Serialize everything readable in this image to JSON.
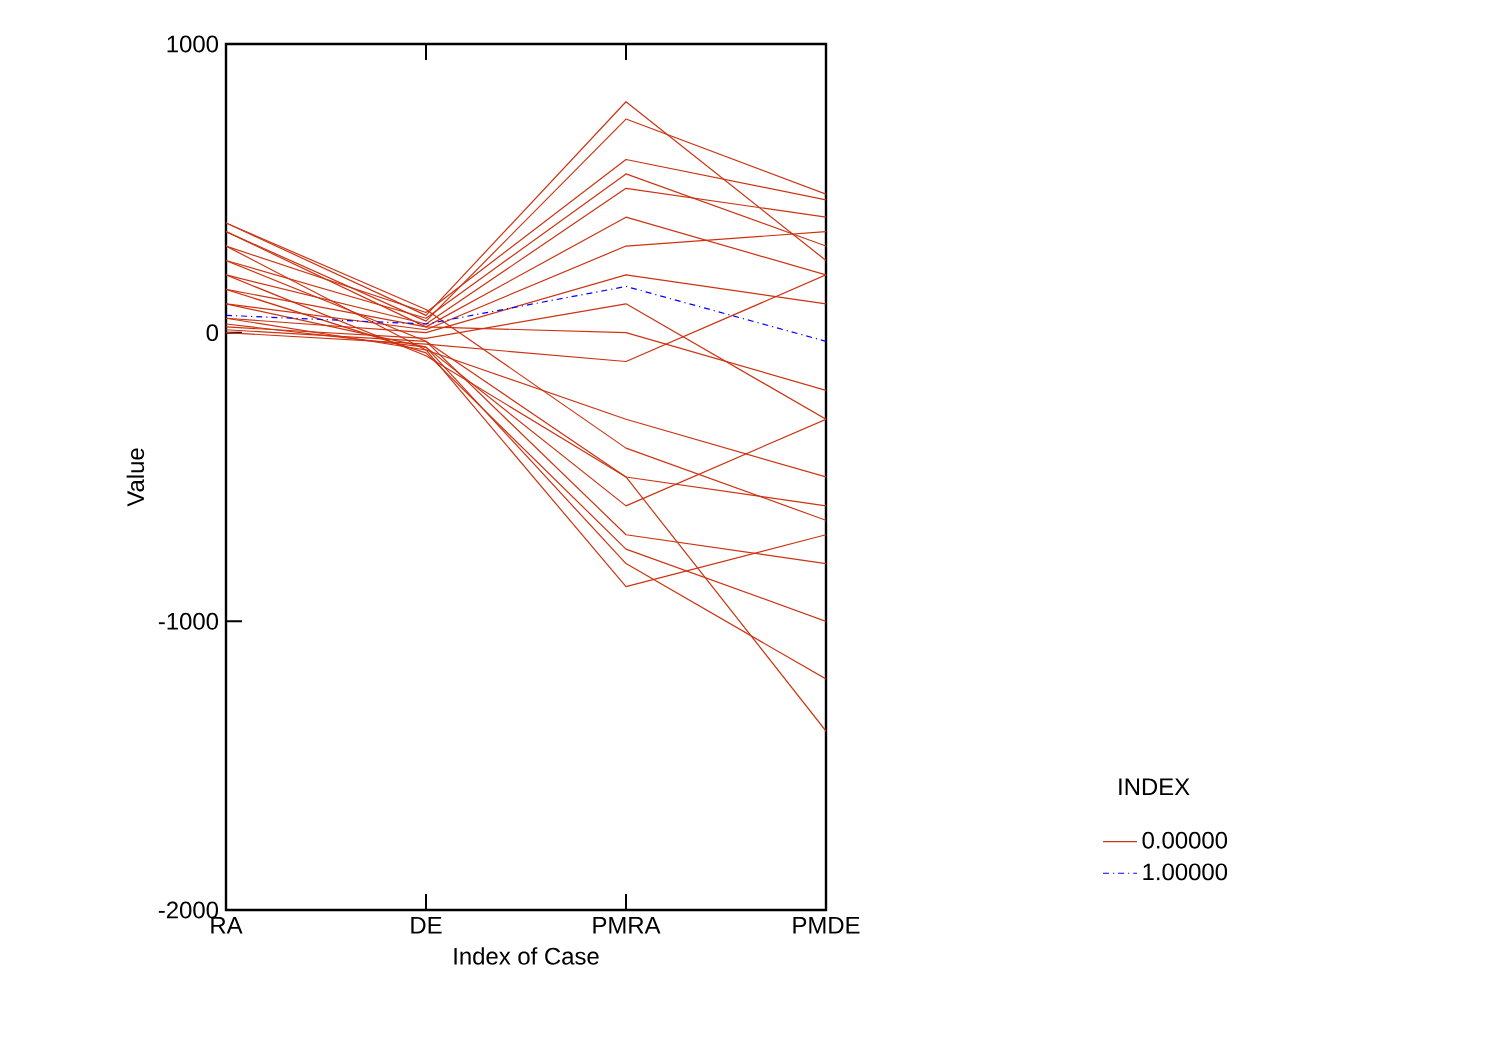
{
  "chart_data": {
    "type": "line",
    "xlabel": "Index of Case",
    "ylabel": "Value",
    "legend_title": "INDEX",
    "categories": [
      "RA",
      "DE",
      "PMRA",
      "PMDE"
    ],
    "ylim": [
      -2000,
      1000
    ],
    "yticks": [
      -2000,
      -1000,
      0,
      1000
    ],
    "grid": false,
    "legend": "right",
    "marker": "none",
    "series": [
      {
        "name": "0.00000",
        "color": "#cc3311",
        "line_style": "solid",
        "values": [
          380,
          60,
          800,
          250
        ]
      },
      {
        "color": "#cc3311",
        "line_style": "solid",
        "values": [
          350,
          40,
          740,
          480
        ]
      },
      {
        "color": "#cc3311",
        "line_style": "solid",
        "values": [
          300,
          70,
          600,
          460
        ]
      },
      {
        "color": "#cc3311",
        "line_style": "solid",
        "values": [
          250,
          50,
          550,
          300
        ]
      },
      {
        "color": "#cc3311",
        "line_style": "solid",
        "values": [
          200,
          30,
          500,
          400
        ]
      },
      {
        "color": "#cc3311",
        "line_style": "solid",
        "values": [
          150,
          20,
          400,
          200
        ]
      },
      {
        "color": "#cc3311",
        "line_style": "solid",
        "values": [
          100,
          10,
          300,
          350
        ]
      },
      {
        "color": "#cc3311",
        "line_style": "solid",
        "values": [
          50,
          0,
          200,
          100
        ]
      },
      {
        "color": "#cc3311",
        "line_style": "solid",
        "values": [
          20,
          -20,
          100,
          -300
        ]
      },
      {
        "color": "#cc3311",
        "line_style": "solid",
        "values": [
          0,
          -40,
          -100,
          200
        ]
      },
      {
        "color": "#cc3311",
        "line_style": "solid",
        "values": [
          300,
          -60,
          -300,
          -500
        ]
      },
      {
        "color": "#cc3311",
        "line_style": "solid",
        "values": [
          200,
          -80,
          -500,
          -600
        ]
      },
      {
        "color": "#cc3311",
        "line_style": "solid",
        "values": [
          100,
          -50,
          -600,
          -300
        ]
      },
      {
        "color": "#cc3311",
        "line_style": "solid",
        "values": [
          250,
          -30,
          -700,
          -800
        ]
      },
      {
        "color": "#cc3311",
        "line_style": "solid",
        "values": [
          150,
          -70,
          -750,
          -1000
        ]
      },
      {
        "color": "#cc3311",
        "line_style": "solid",
        "values": [
          50,
          -60,
          -880,
          -700
        ]
      },
      {
        "color": "#cc3311",
        "line_style": "solid",
        "values": [
          30,
          -50,
          -800,
          -1200
        ]
      },
      {
        "color": "#cc3311",
        "line_style": "solid",
        "values": [
          10,
          -30,
          -500,
          -1380
        ]
      },
      {
        "color": "#cc3311",
        "line_style": "solid",
        "values": [
          350,
          20,
          0,
          -200
        ]
      },
      {
        "color": "#cc3311",
        "line_style": "solid",
        "values": [
          380,
          80,
          -400,
          -650
        ]
      },
      {
        "name": "1.00000",
        "color": "#0000ff",
        "line_style": "dotted",
        "values": [
          60,
          30,
          160,
          -30
        ]
      }
    ]
  }
}
